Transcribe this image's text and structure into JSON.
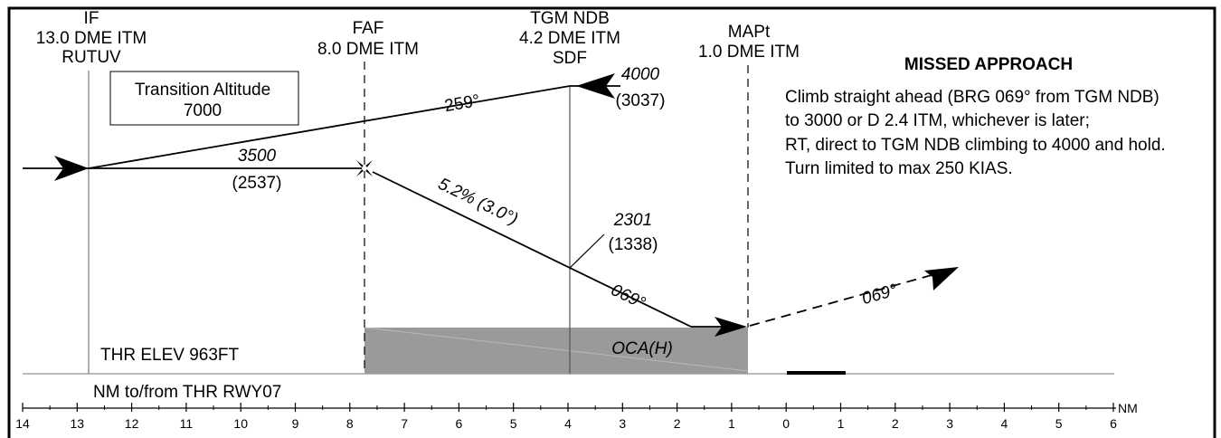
{
  "fixes": {
    "if": {
      "name": "IF",
      "dist": "13.0 DME ITM",
      "id": "RUTUV"
    },
    "faf": {
      "name": "FAF",
      "dist": "8.0 DME ITM"
    },
    "ndb": {
      "name": "TGM NDB",
      "dist": "4.2 DME ITM",
      "id": "SDF"
    },
    "mapt": {
      "name": "MAPt",
      "dist": "1.0 DME ITM"
    }
  },
  "transition_altitude": {
    "label": "Transition Altitude",
    "value": "7000"
  },
  "altitudes": {
    "initial": {
      "alt": "3500",
      "height": "(2537)"
    },
    "holding": {
      "alt": "4000",
      "height": "(3037)"
    },
    "step": {
      "alt": "2301",
      "height": "(1338)"
    }
  },
  "tracks": {
    "inbound_return": "259°",
    "descent_gradient": "5.2% (3.0°)",
    "final": "069°",
    "missed": "069°"
  },
  "missed_approach": {
    "title": "MISSED APPROACH",
    "lines": [
      "Climb straight ahead (BRG 069° from TGM NDB)",
      "to 3000 or D 2.4 ITM, whichever is later;",
      "RT, direct to TGM NDB climbing to 4000 and hold.",
      "Turn limited to max 250 KIAS."
    ]
  },
  "oca_label": "OCA(H)",
  "thr_elev": "THR ELEV 963FT",
  "axis": {
    "caption": "NM to/from THR RWY07",
    "unit": "NM",
    "ticks": [
      "14",
      "13",
      "12",
      "11",
      "10",
      "9",
      "8",
      "7",
      "6",
      "5",
      "4",
      "3",
      "2",
      "1",
      "0",
      "1",
      "2",
      "3",
      "4",
      "5",
      "6"
    ]
  },
  "colors": {
    "oca_fill": "#9a9a9a",
    "line": "#000000",
    "guide": "#7a7a7a"
  }
}
